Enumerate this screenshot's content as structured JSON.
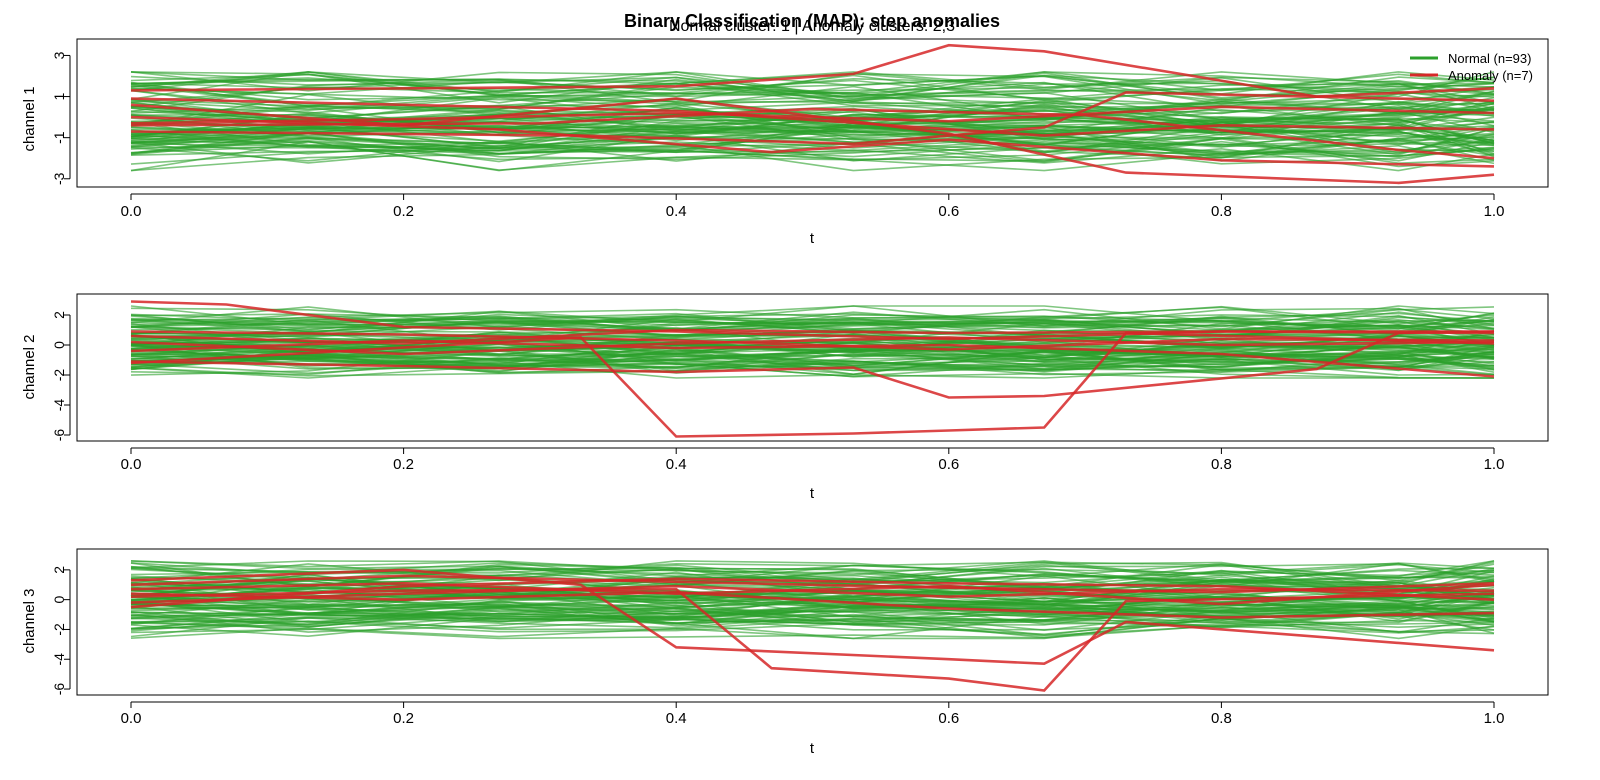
{
  "title": "Binary Classification (MAP): step anomalies",
  "subtitle": "Normal cluster: 1 | Anomaly clusters: 2,3",
  "legend": {
    "position": "top-right",
    "items": [
      {
        "label": "Normal (n=93)",
        "color": "#2ca02c"
      },
      {
        "label": "Anomaly (n=7)",
        "color": "#d62728"
      }
    ]
  },
  "colors": {
    "normal": "#2ca02c",
    "anomaly": "#d62728"
  },
  "chart_data": [
    {
      "type": "line",
      "ylabel": "channel 1",
      "xlabel": "t",
      "xlim": [
        0,
        1
      ],
      "ylim": [
        -3.4,
        3.8
      ],
      "xticks": [
        "0.0",
        "0.2",
        "0.4",
        "0.6",
        "0.8",
        "1.0"
      ],
      "yticks": [
        "-3",
        "-1",
        "1",
        "3"
      ],
      "normal_count": 93,
      "normal_range": [
        -2.6,
        2.2
      ],
      "anomaly_series": [
        {
          "x": [
            0,
            0.4,
            0.53,
            0.6,
            0.67,
            0.87,
            1.0
          ],
          "y": [
            1.3,
            1.5,
            2.1,
            3.5,
            3.2,
            1.0,
            1.4
          ]
        },
        {
          "x": [
            0,
            0.2,
            0.4,
            0.6,
            0.73,
            0.93,
            1.0
          ],
          "y": [
            0.6,
            -0.4,
            0.9,
            -0.8,
            -2.7,
            -3.2,
            -2.8
          ]
        },
        {
          "x": [
            0,
            0.27,
            0.47,
            0.6,
            0.8,
            1.0
          ],
          "y": [
            0.0,
            -0.6,
            -1.7,
            -1.1,
            -2.1,
            -2.4
          ]
        },
        {
          "x": [
            0,
            0.2,
            0.4,
            0.6,
            0.8,
            1.0
          ],
          "y": [
            -0.3,
            -0.1,
            0.2,
            -0.2,
            0.5,
            0.2
          ]
        },
        {
          "x": [
            0,
            0.33,
            0.53,
            0.67,
            0.73,
            1.0
          ],
          "y": [
            -0.7,
            -0.9,
            -1.3,
            -0.5,
            1.2,
            0.8
          ]
        },
        {
          "x": [
            0,
            0.2,
            0.4,
            0.67,
            0.8,
            1.0
          ],
          "y": [
            0.9,
            0.6,
            0.3,
            -0.9,
            -0.4,
            -0.6
          ]
        },
        {
          "x": [
            0,
            0.3,
            0.5,
            0.7,
            0.93,
            1.0
          ],
          "y": [
            -0.4,
            -0.3,
            0.4,
            0.1,
            -1.6,
            -2.0
          ]
        }
      ]
    },
    {
      "type": "line",
      "ylabel": "channel 2",
      "xlabel": "t",
      "xlim": [
        0,
        1
      ],
      "ylim": [
        -6.4,
        3.4
      ],
      "xticks": [
        "0.0",
        "0.2",
        "0.4",
        "0.6",
        "0.8",
        "1.0"
      ],
      "yticks": [
        "-6",
        "-4",
        "-2",
        "0",
        "2"
      ],
      "normal_count": 93,
      "normal_range": [
        -2.2,
        2.6
      ],
      "anomaly_series": [
        {
          "x": [
            0,
            0.07,
            0.2,
            0.4,
            0.6,
            0.8,
            1.0
          ],
          "y": [
            2.9,
            2.7,
            1.2,
            0.9,
            0.4,
            0.9,
            0.9
          ]
        },
        {
          "x": [
            0,
            0.33,
            0.4,
            0.53,
            0.6,
            0.67,
            0.73,
            1.0
          ],
          "y": [
            -1.2,
            0.5,
            -6.1,
            -5.9,
            -5.7,
            -5.5,
            0.8,
            0.1
          ]
        },
        {
          "x": [
            0,
            0.2,
            0.4,
            0.53,
            0.6,
            0.67,
            0.87,
            0.93,
            1.0
          ],
          "y": [
            -1.1,
            -1.4,
            -1.8,
            -1.5,
            -3.5,
            -3.4,
            -1.6,
            0.8,
            0.9
          ]
        },
        {
          "x": [
            0,
            0.2,
            0.4,
            0.6,
            0.8,
            1.0
          ],
          "y": [
            0.6,
            0.1,
            1.0,
            0.8,
            0.9,
            0.8
          ]
        },
        {
          "x": [
            0,
            0.2,
            0.4,
            0.6,
            0.8,
            1.0
          ],
          "y": [
            0.2,
            -0.6,
            0.1,
            0.5,
            0.0,
            0.2
          ]
        },
        {
          "x": [
            0,
            0.2,
            0.4,
            0.6,
            0.8,
            1.0
          ],
          "y": [
            -0.4,
            0.3,
            -0.2,
            0.0,
            -0.6,
            -2.1
          ]
        },
        {
          "x": [
            0,
            0.2,
            0.4,
            0.6,
            0.8,
            1.0
          ],
          "y": [
            0.9,
            0.7,
            0.3,
            -0.3,
            0.4,
            0.3
          ]
        }
      ]
    },
    {
      "type": "line",
      "ylabel": "channel 3",
      "xlabel": "t",
      "xlim": [
        0,
        1
      ],
      "ylim": [
        -6.4,
        3.4
      ],
      "xticks": [
        "0.0",
        "0.2",
        "0.4",
        "0.6",
        "0.8",
        "1.0"
      ],
      "yticks": [
        "-6",
        "-4",
        "-2",
        "0",
        "2"
      ],
      "normal_count": 93,
      "normal_range": [
        -2.6,
        2.6
      ],
      "anomaly_series": [
        {
          "x": [
            0,
            0.2,
            0.33,
            0.4,
            0.6,
            0.67,
            0.73,
            1.0
          ],
          "y": [
            1.3,
            2.0,
            1.0,
            -3.2,
            -4.0,
            -4.3,
            -1.5,
            -3.4
          ]
        },
        {
          "x": [
            0,
            0.2,
            0.4,
            0.47,
            0.6,
            0.67,
            0.73,
            1.0
          ],
          "y": [
            0.2,
            0.6,
            0.7,
            -4.6,
            -5.3,
            -6.1,
            -0.1,
            0.4
          ]
        },
        {
          "x": [
            0,
            0.2,
            0.4,
            0.6,
            0.8,
            1.0
          ],
          "y": [
            1.0,
            1.6,
            1.2,
            0.8,
            0.5,
            1.1
          ]
        },
        {
          "x": [
            0,
            0.2,
            0.4,
            0.6,
            0.8,
            1.0
          ],
          "y": [
            -0.2,
            0.4,
            0.9,
            0.2,
            0.7,
            0.6
          ]
        },
        {
          "x": [
            0,
            0.2,
            0.4,
            0.6,
            0.8,
            1.0
          ],
          "y": [
            0.4,
            0.0,
            0.5,
            -0.6,
            -1.2,
            -0.9
          ]
        },
        {
          "x": [
            0,
            0.2,
            0.4,
            0.6,
            0.8,
            1.0
          ],
          "y": [
            -0.5,
            0.9,
            1.4,
            1.1,
            0.9,
            0.0
          ]
        },
        {
          "x": [
            0,
            0.2,
            0.4,
            0.6,
            0.8,
            1.0
          ],
          "y": [
            0.7,
            1.1,
            0.4,
            0.9,
            -0.3,
            1.0
          ]
        }
      ]
    }
  ]
}
